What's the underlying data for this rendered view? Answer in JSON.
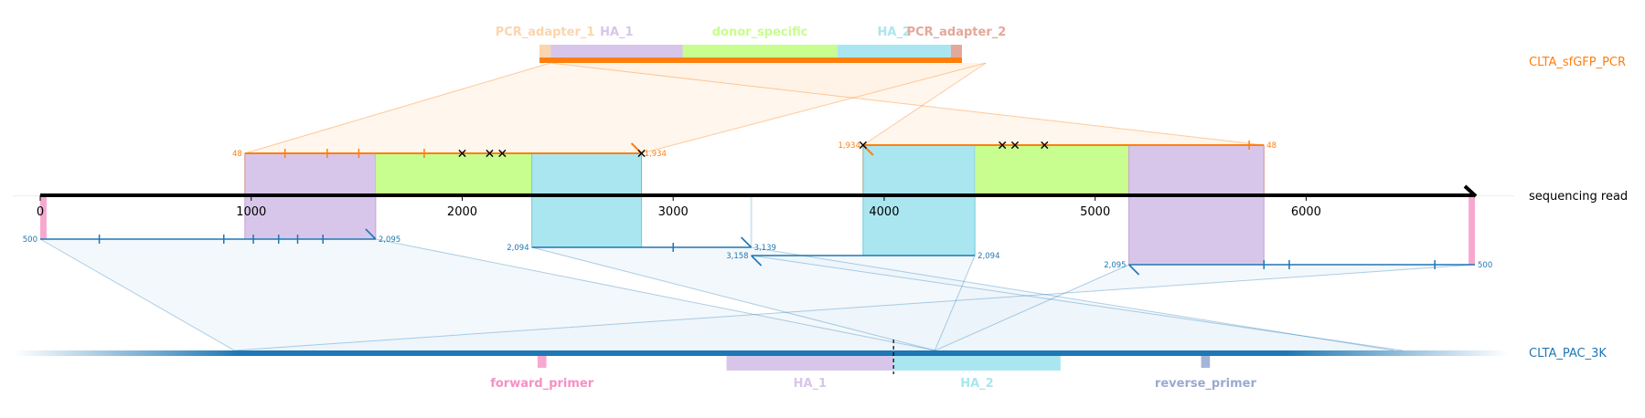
{
  "colors": {
    "top": "#ff7f0e",
    "bottom": "#1f77b4",
    "axis": "#000000",
    "PCR_adapter_1": "#fbd5ad",
    "HA_1": "#d8c6ea",
    "donor_specific": "#c8fd8f",
    "HA_2": "#aae6ef",
    "PCR_adapter_2": "#e3a89a",
    "forward_primer": "#f7a8d0",
    "reverse_primer": "#a4b5d8",
    "primer_label_forward": "#f590c4",
    "primer_label_reverse": "#9aa9cf",
    "top_fill": "#fff2e5",
    "bottom_fill": "#e9f2f9"
  },
  "references": {
    "top": {
      "name": "CLTA_sfGFP_PCR"
    },
    "middle": {
      "name": "sequencing read",
      "length": 6800,
      "ticks": [
        0,
        1000,
        2000,
        3000,
        4000,
        5000,
        6000
      ]
    },
    "bottom": {
      "name": "CLTA_PAC_3K",
      "length": 3400
    }
  },
  "top_features": [
    {
      "name": "PCR_adapter_1",
      "label": "PCR_adapter_1",
      "start": 0,
      "end": 48
    },
    {
      "name": "HA_1",
      "label": "HA_1",
      "start": 48,
      "end": 620
    },
    {
      "name": "donor_specific",
      "label": "donor_specific",
      "start": 620,
      "end": 1290
    },
    {
      "name": "HA_2",
      "label": "HA_2",
      "start": 1290,
      "end": 1782
    },
    {
      "name": "PCR_adapter_2",
      "label": "PCR_adapter_2",
      "start": 1782,
      "end": 1830
    }
  ],
  "bottom_features": [
    {
      "name": "forward_primer",
      "label": "forward_primer",
      "start": 1190,
      "end": 1210,
      "label_color": "primer_label_forward",
      "primer": true
    },
    {
      "name": "HA_1",
      "label": "HA_1",
      "start": 1620,
      "end": 2000,
      "label_color": "HA_1",
      "primer": false
    },
    {
      "name": "HA_2",
      "label": "HA_2",
      "start": 2000,
      "end": 2380,
      "label_color": "HA_2",
      "primer": false
    },
    {
      "name": "reverse_primer",
      "label": "reverse_primer",
      "start": 2700,
      "end": 2720,
      "label_color": "primer_label_reverse",
      "primer": true
    }
  ],
  "cut_site": 2000,
  "read_features": [
    {
      "type": "HA_1",
      "start": 970,
      "end": 1590,
      "side": "both"
    },
    {
      "type": "donor_specific",
      "start": 1590,
      "end": 2330,
      "side": "top"
    },
    {
      "type": "HA_2",
      "start": 2330,
      "end": 2850,
      "side": "both"
    },
    {
      "type": "HA_2",
      "start": 3900,
      "end": 4430,
      "side": "both"
    },
    {
      "type": "donor_specific",
      "start": 4430,
      "end": 5160,
      "side": "top"
    },
    {
      "type": "HA_1",
      "start": 5160,
      "end": 5800,
      "side": "both"
    },
    {
      "type": "forward_primer",
      "start": 0,
      "end": 30,
      "side": "bottom"
    },
    {
      "type": "forward_primer",
      "start": 6770,
      "end": 6800,
      "side": "bottom"
    }
  ],
  "top_alignments": [
    {
      "read_start": 970,
      "read_end": 2850,
      "ref_start": 48,
      "ref_end": 1934,
      "label_left": "48",
      "label_right": "1,934",
      "strand": "+",
      "tier": 0,
      "mismatches": [
        1160,
        1360,
        1510,
        1820
      ],
      "deletions": [
        2000,
        2130,
        2190,
        2850
      ]
    },
    {
      "read_start": 3900,
      "read_end": 5800,
      "ref_start": 1934,
      "ref_end": 48,
      "label_left": "1,934",
      "label_right": "48",
      "strand": "-",
      "tier": 1,
      "mismatches": [
        5730
      ],
      "deletions": [
        3900,
        4560,
        4620,
        4760
      ]
    }
  ],
  "bottom_alignments": [
    {
      "read_start": 0,
      "read_end": 1590,
      "ref_start": 500,
      "ref_end": 2095,
      "label_left": "500",
      "label_right": "2,095",
      "strand": "+",
      "tier": 0,
      "mismatches": [
        280,
        870,
        1010,
        1130,
        1220,
        1340
      ]
    },
    {
      "read_start": 2330,
      "read_end": 3370,
      "ref_start": 2094,
      "ref_end": 3139,
      "label_left": "2,094",
      "label_right": "3,139",
      "strand": "+",
      "tier": 1,
      "mismatches": [
        3000
      ]
    },
    {
      "read_start": 3370,
      "read_end": 4430,
      "ref_start": 3158,
      "ref_end": 2094,
      "label_left": "3,158",
      "label_right": "2,094",
      "strand": "-",
      "tier": 2,
      "mismatches": []
    },
    {
      "read_start": 5160,
      "read_end": 6800,
      "ref_start": 2095,
      "ref_end": 500,
      "label_left": "2,095",
      "label_right": "500",
      "strand": "-",
      "tier": 3,
      "mismatches": [
        5800,
        5920,
        6610
      ]
    }
  ]
}
